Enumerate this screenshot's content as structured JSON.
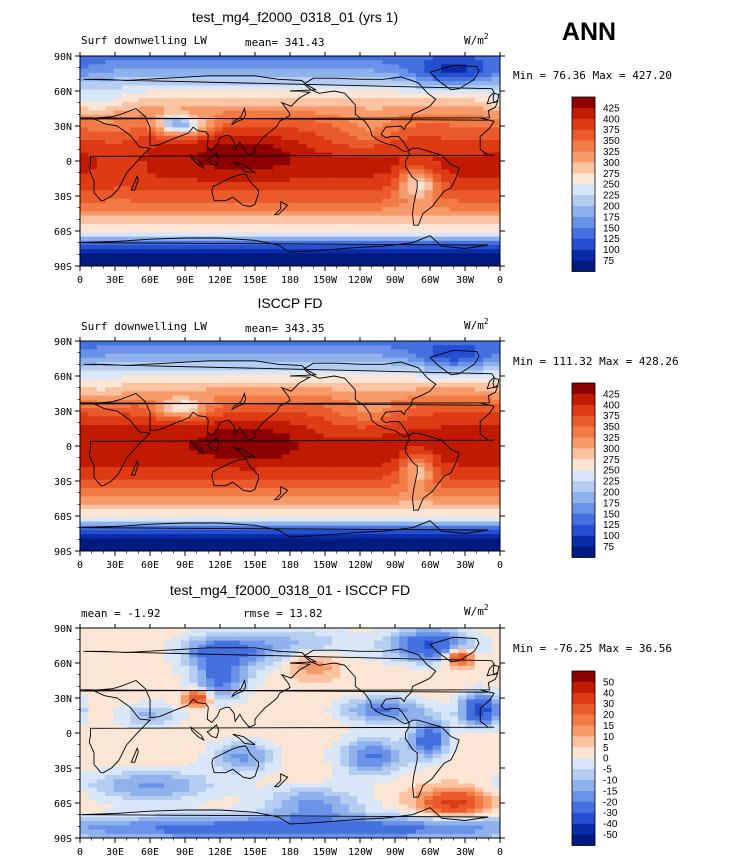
{
  "season": "ANN",
  "chart_data": [
    {
      "type": "heatmap",
      "title": "test_mg4_f2000_0318_01 (yrs 1)",
      "left_label": "Surf downwelling LW",
      "center_label": "mean= 341.43",
      "units": "W/m",
      "units_exp": "2",
      "minmax": "Min =  76.36 Max = 427.20",
      "field": "model",
      "xticks": [
        "0",
        "30E",
        "60E",
        "90E",
        "120E",
        "150E",
        "180",
        "150W",
        "120W",
        "90W",
        "60W",
        "30W",
        "0"
      ],
      "yticks": [
        "90N",
        "60N",
        "30N",
        "0",
        "30S",
        "60S",
        "90S"
      ],
      "colorbar": {
        "levels": [
          "425",
          "400",
          "375",
          "350",
          "325",
          "300",
          "275",
          "250",
          "225",
          "200",
          "175",
          "150",
          "125",
          "100",
          "75"
        ],
        "colors": [
          "#8b0000",
          "#c01a00",
          "#dd3b14",
          "#ea5a2a",
          "#f27a44",
          "#f79a6a",
          "#fcc3a2",
          "#fbe6d6",
          "#d9e6f7",
          "#b4cdf0",
          "#8fb2ec",
          "#6a92e8",
          "#4570e0",
          "#234fd0",
          "#0a2ba8",
          "#001a80"
        ]
      }
    },
    {
      "type": "heatmap",
      "title": "ISCCP FD",
      "left_label": "Surf downwelling LW",
      "center_label": "mean= 343.35",
      "units": "W/m",
      "units_exp": "2",
      "minmax": "Min = 111.32 Max = 428.26",
      "field": "obs",
      "xticks": [
        "0",
        "30E",
        "60E",
        "90E",
        "120E",
        "150E",
        "180",
        "150W",
        "120W",
        "90W",
        "60W",
        "30W",
        "0"
      ],
      "yticks": [
        "90N",
        "60N",
        "30N",
        "0",
        "30S",
        "60S",
        "90S"
      ],
      "colorbar": {
        "levels": [
          "425",
          "400",
          "375",
          "350",
          "325",
          "300",
          "275",
          "250",
          "225",
          "200",
          "175",
          "150",
          "125",
          "100",
          "75"
        ],
        "colors": [
          "#8b0000",
          "#c01a00",
          "#dd3b14",
          "#ea5a2a",
          "#f27a44",
          "#f79a6a",
          "#fcc3a2",
          "#fbe6d6",
          "#d9e6f7",
          "#b4cdf0",
          "#8fb2ec",
          "#6a92e8",
          "#4570e0",
          "#234fd0",
          "#0a2ba8",
          "#001a80"
        ]
      }
    },
    {
      "type": "heatmap",
      "title": "test_mg4_f2000_0318_01 - ISCCP FD",
      "left_label": "mean =   -1.92",
      "center_label": "rmse =   13.82",
      "units": "W/m",
      "units_exp": "2",
      "minmax": "Min = -76.25 Max =  36.56",
      "field": "diff",
      "xticks": [
        "0",
        "30E",
        "60E",
        "90E",
        "120E",
        "150E",
        "180",
        "150W",
        "120W",
        "90W",
        "60W",
        "30W",
        "0"
      ],
      "yticks": [
        "90N",
        "60N",
        "30N",
        "0",
        "30S",
        "60S",
        "90S"
      ],
      "colorbar": {
        "levels": [
          "50",
          "40",
          "30",
          "20",
          "15",
          "10",
          "5",
          "0",
          "-5",
          "-10",
          "-15",
          "-20",
          "-30",
          "-40",
          "-50"
        ],
        "colors": [
          "#8b0000",
          "#c01a00",
          "#dd3b14",
          "#ea5a2a",
          "#f27a44",
          "#f79a6a",
          "#fcc3a2",
          "#fbe6d6",
          "#d9e6f7",
          "#b4cdf0",
          "#8fb2ec",
          "#6a92e8",
          "#4570e0",
          "#234fd0",
          "#0a2ba8",
          "#001a80"
        ]
      }
    }
  ]
}
